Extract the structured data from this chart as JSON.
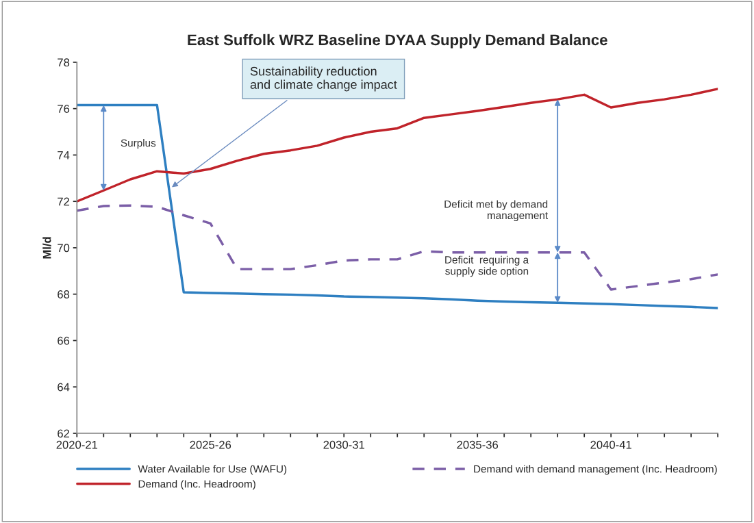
{
  "chart_data": {
    "type": "line",
    "title": "East Suffolk WRZ Baseline DYAA Supply Demand Balance",
    "ylabel": "Ml/d",
    "categories": [
      "2020-21",
      null,
      null,
      null,
      null,
      "2025-26",
      null,
      null,
      null,
      null,
      "2030-31",
      null,
      null,
      null,
      null,
      "2035-36",
      null,
      null,
      null,
      null,
      "2040-41",
      null,
      null,
      null,
      null
    ],
    "ylim": [
      62,
      78
    ],
    "yticks": [
      62,
      64,
      66,
      68,
      70,
      72,
      74,
      76,
      78
    ],
    "grid": false,
    "legend": "bottom",
    "series": [
      {
        "name": "Water Available for Use (WAFU)",
        "color": "#2e7fc1",
        "line_style": "solid",
        "values": [
          76.15,
          76.15,
          76.15,
          76.15,
          68.08,
          68.05,
          68.03,
          68.0,
          67.98,
          67.95,
          67.9,
          67.88,
          67.85,
          67.82,
          67.78,
          67.72,
          67.68,
          67.65,
          67.63,
          67.6,
          67.57,
          67.53,
          67.49,
          67.45,
          67.4
        ]
      },
      {
        "name": "Demand (Inc. Headroom)",
        "color": "#c0232a",
        "line_style": "solid",
        "values": [
          72.0,
          72.47,
          72.95,
          73.3,
          73.2,
          73.4,
          73.75,
          74.05,
          74.2,
          74.4,
          74.75,
          75.0,
          75.15,
          75.6,
          75.75,
          75.9,
          76.07,
          76.25,
          76.4,
          76.6,
          76.05,
          76.25,
          76.4,
          76.6,
          76.85
        ]
      },
      {
        "name": "Demand with demand management (Inc. Headroom)",
        "color": "#7b5ea7",
        "line_style": "dashed",
        "values": [
          71.6,
          71.8,
          71.82,
          71.77,
          71.4,
          71.05,
          69.08,
          69.08,
          69.08,
          69.25,
          69.45,
          69.5,
          69.5,
          69.85,
          69.8,
          69.8,
          69.8,
          69.8,
          69.8,
          69.8,
          68.2,
          68.35,
          68.5,
          68.65,
          68.85
        ]
      }
    ],
    "annotations": [
      "Sustainability reduction\nand climate change impact",
      "Surplus",
      "Deficit met by demand\nmanagement",
      "Deficit  requiring a\nsupply side option"
    ]
  }
}
